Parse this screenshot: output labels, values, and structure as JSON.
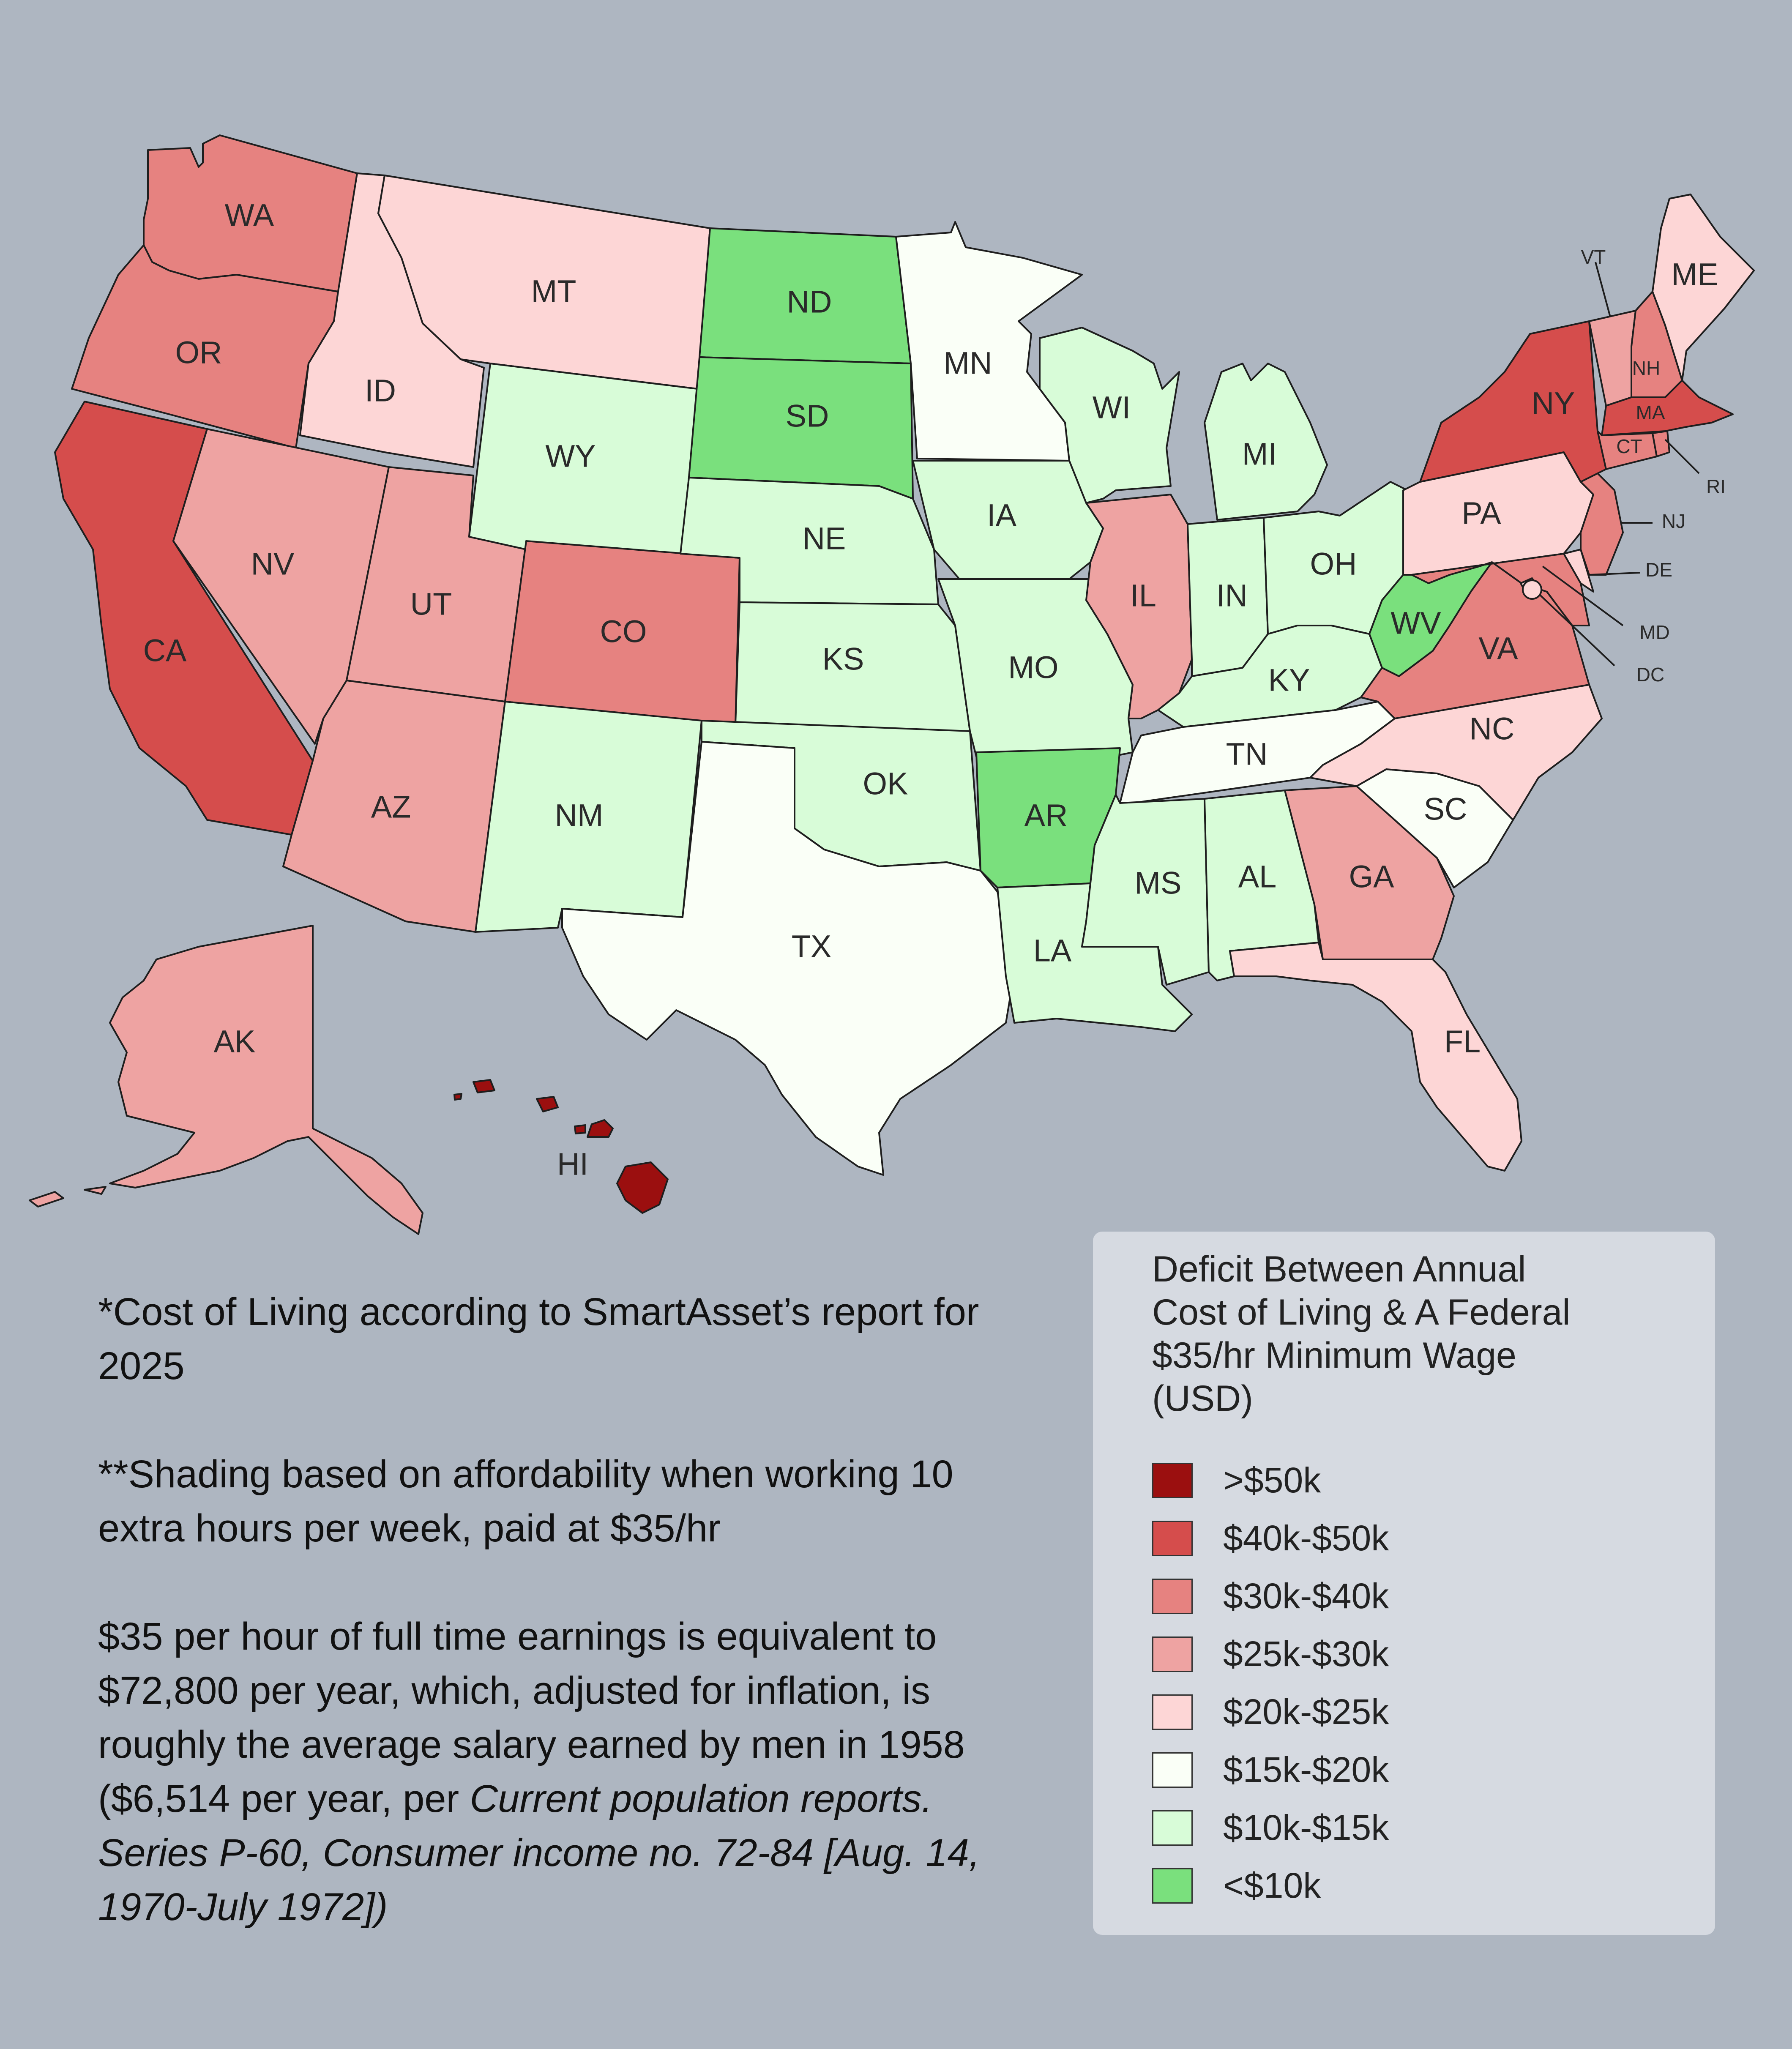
{
  "colors": {
    "background": "#aeb6c1",
    "legend_panel": "#d6dae1",
    "border": "#1e1e1e"
  },
  "legend": {
    "title_lines": [
      "Deficit Between Annual",
      "Cost of Living & A Federal",
      "$35/hr Minimum Wage",
      "(USD)"
    ],
    "items": [
      {
        "label": ">$50k",
        "color": "#9b0f0f"
      },
      {
        "label": "$40k-$50k",
        "color": "#d54d4c"
      },
      {
        "label": "$30k-$40k",
        "color": "#e68280"
      },
      {
        "label": "$25k-$30k",
        "color": "#eea3a2"
      },
      {
        "label": "$20k-$25k",
        "color": "#fdd6d6"
      },
      {
        "label": "$15k-$20k",
        "color": "#fafff7"
      },
      {
        "label": "$10k-$15k",
        "color": "#d8fcd8"
      },
      {
        "label": "<$10k",
        "color": "#7ae07d"
      }
    ]
  },
  "states": {
    "WA": {
      "label": "WA",
      "tier": 2
    },
    "OR": {
      "label": "OR",
      "tier": 2
    },
    "CA": {
      "label": "CA",
      "tier": 1
    },
    "ID": {
      "label": "ID",
      "tier": 4
    },
    "MT": {
      "label": "MT",
      "tier": 4
    },
    "NV": {
      "label": "NV",
      "tier": 3
    },
    "UT": {
      "label": "UT",
      "tier": 3
    },
    "AZ": {
      "label": "AZ",
      "tier": 3
    },
    "WY": {
      "label": "WY",
      "tier": 6
    },
    "CO": {
      "label": "CO",
      "tier": 2
    },
    "NM": {
      "label": "NM",
      "tier": 6
    },
    "ND": {
      "label": "ND",
      "tier": 7
    },
    "SD": {
      "label": "SD",
      "tier": 7
    },
    "NE": {
      "label": "NE",
      "tier": 6
    },
    "KS": {
      "label": "KS",
      "tier": 6
    },
    "OK": {
      "label": "OK",
      "tier": 6
    },
    "TX": {
      "label": "TX",
      "tier": 5
    },
    "MN": {
      "label": "MN",
      "tier": 5
    },
    "IA": {
      "label": "IA",
      "tier": 6
    },
    "MO": {
      "label": "MO",
      "tier": 6
    },
    "AR": {
      "label": "AR",
      "tier": 7
    },
    "LA": {
      "label": "LA",
      "tier": 6
    },
    "WI": {
      "label": "WI",
      "tier": 6
    },
    "IL": {
      "label": "IL",
      "tier": 3
    },
    "MI": {
      "label": "MI",
      "tier": 6
    },
    "IN": {
      "label": "IN",
      "tier": 6
    },
    "OH": {
      "label": "OH",
      "tier": 6
    },
    "KY": {
      "label": "KY",
      "tier": 6
    },
    "TN": {
      "label": "TN",
      "tier": 5
    },
    "MS": {
      "label": "MS",
      "tier": 6
    },
    "AL": {
      "label": "AL",
      "tier": 6
    },
    "GA": {
      "label": "GA",
      "tier": 3
    },
    "FL": {
      "label": "FL",
      "tier": 4
    },
    "SC": {
      "label": "SC",
      "tier": 5
    },
    "NC": {
      "label": "NC",
      "tier": 4
    },
    "VA": {
      "label": "VA",
      "tier": 2
    },
    "WV": {
      "label": "WV",
      "tier": 7
    },
    "PA": {
      "label": "PA",
      "tier": 4
    },
    "NY": {
      "label": "NY",
      "tier": 1
    },
    "VT": {
      "label": "VT",
      "tier": 3
    },
    "NH": {
      "label": "NH",
      "tier": 2
    },
    "ME": {
      "label": "ME",
      "tier": 4
    },
    "MA": {
      "label": "MA",
      "tier": 1
    },
    "CT": {
      "label": "CT",
      "tier": 2
    },
    "RI": {
      "label": "RI",
      "tier": 2
    },
    "NJ": {
      "label": "NJ",
      "tier": 2
    },
    "DE": {
      "label": "DE",
      "tier": 4
    },
    "MD": {
      "label": "MD",
      "tier": 2
    },
    "DC": {
      "label": "DC",
      "tier": 4
    },
    "AK": {
      "label": "AK",
      "tier": 3
    },
    "HI": {
      "label": "HI",
      "tier": 0
    }
  },
  "notes": {
    "p1": "*Cost of Living according to SmartAsset’s report for 2025",
    "p2": "**Shading based on affordability when working 10 extra hours per week, paid at $35/hr",
    "p3_plain": "$35 per hour of full time earnings is equivalent to $72,800 per year, which, adjusted for inflation, is roughly the average salary earned by men in 1958 ($6,514 per year, per ",
    "p3_italic": "Current population reports. Series P-60, Consumer income no. 72-84 [Aug. 14, 1970-July 1972])"
  }
}
